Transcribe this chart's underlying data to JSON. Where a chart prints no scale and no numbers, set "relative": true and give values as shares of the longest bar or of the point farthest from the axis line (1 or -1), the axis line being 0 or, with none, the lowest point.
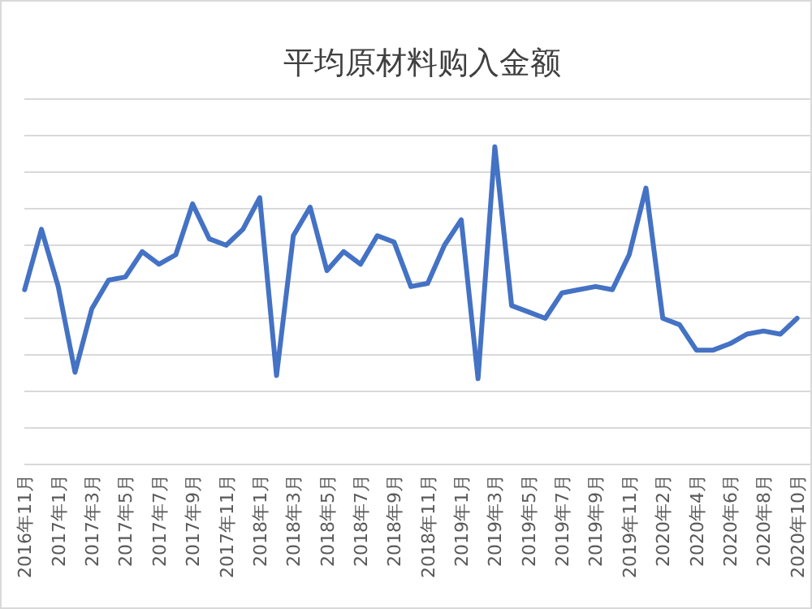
{
  "chart_data": {
    "type": "line",
    "title": "平均原材料购入金额",
    "relative": true,
    "grid": "y",
    "color": "#4472c4",
    "categories": [
      "2016年11月",
      null,
      "2017年1月",
      null,
      "2017年3月",
      null,
      "2017年5月",
      null,
      "2017年7月",
      null,
      "2017年9月",
      null,
      "2017年11月",
      null,
      "2018年1月",
      null,
      "2018年3月",
      null,
      "2018年5月",
      null,
      "2018年7月",
      null,
      "2018年9月",
      null,
      "2018年11月",
      null,
      "2019年1月",
      null,
      "2019年3月",
      null,
      "2019年5月",
      null,
      "2019年7月",
      null,
      "2019年9月",
      null,
      "2019年11月",
      null,
      "2020年2月",
      null,
      "2020年4月",
      null,
      "2020年6月",
      null,
      "2020年8月",
      null,
      "2020年10月"
    ],
    "values": [
      0.55,
      0.74,
      0.56,
      0.29,
      0.49,
      0.58,
      0.59,
      0.67,
      0.63,
      0.66,
      0.82,
      0.71,
      0.69,
      0.74,
      0.84,
      0.28,
      0.72,
      0.81,
      0.61,
      0.67,
      0.63,
      0.72,
      0.7,
      0.56,
      0.57,
      0.69,
      0.77,
      0.27,
      1,
      0.5,
      0.48,
      0.46,
      0.54,
      0.55,
      0.56,
      0.55,
      0.66,
      0.87,
      0.46,
      0.44,
      0.36,
      0.36,
      0.38,
      0.41,
      0.42,
      0.41,
      0.46
    ]
  }
}
